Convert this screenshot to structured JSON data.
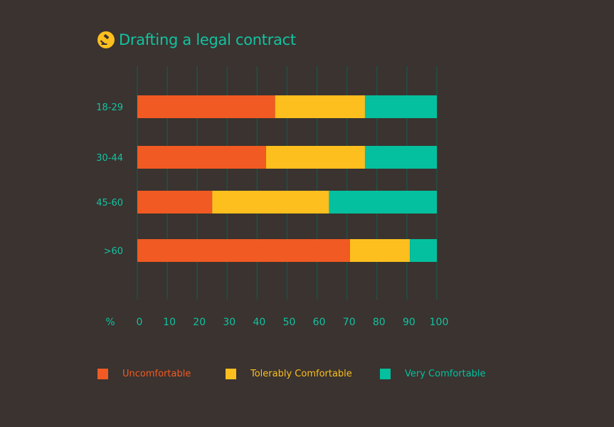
{
  "title": "Drafting a legal contract",
  "icon": "gavel-icon",
  "chart_data": {
    "type": "bar",
    "orientation": "horizontal",
    "stacked": true,
    "categories": [
      "18-29",
      "30-44",
      "45-60",
      ">60"
    ],
    "series": [
      {
        "name": "Uncomfortable",
        "color": "#f15a22",
        "values": [
          46,
          43,
          25,
          71
        ]
      },
      {
        "name": "Tolerably Comfortable",
        "color": "#fcbf1e",
        "values": [
          30,
          33,
          39,
          20
        ]
      },
      {
        "name": "Very Comfortable",
        "color": "#04c09e",
        "values": [
          24,
          24,
          36,
          9
        ]
      }
    ],
    "xunit": "%",
    "xlim": [
      0,
      100
    ],
    "xticks": [
      "0",
      "10",
      "20",
      "30",
      "40",
      "50",
      "60",
      "70",
      "80",
      "90",
      "100"
    ],
    "grid": true,
    "legend": "bottom"
  }
}
